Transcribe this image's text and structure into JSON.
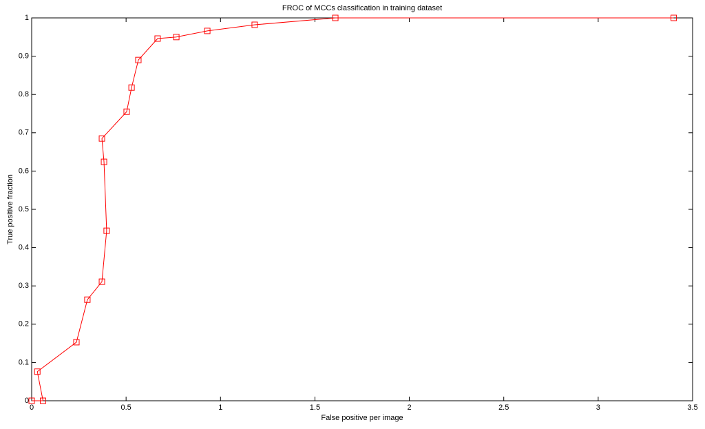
{
  "chart_data": {
    "type": "line",
    "title": "FROC of MCCs classification in training dataset",
    "x_label": "False positive per image",
    "y_label": "True positive fraction",
    "series": [
      {
        "color": "#ff0000",
        "marker": "square",
        "x": [
          0,
          0.06,
          0.03,
          0.237,
          0.295,
          0.372,
          0.397,
          0.383,
          0.372,
          0.503,
          0.529,
          0.565,
          0.667,
          0.766,
          0.93,
          1.181,
          1.608,
          3.4
        ],
        "values": [
          0,
          0,
          0.076,
          0.153,
          0.264,
          0.311,
          0.444,
          0.624,
          0.685,
          0.755,
          0.818,
          0.89,
          0.946,
          0.95,
          0.966,
          0.982,
          1,
          1
        ]
      }
    ],
    "xlim": [
      0,
      3.5
    ],
    "xticks": [
      0,
      0.5,
      1,
      1.5,
      2,
      2.5,
      3,
      3.5
    ],
    "ylim": [
      0,
      1
    ],
    "yticks": [
      0,
      0.1,
      0.2,
      0.3,
      0.4,
      0.5,
      0.6,
      0.7,
      0.8,
      0.9,
      1
    ],
    "grid": false
  }
}
